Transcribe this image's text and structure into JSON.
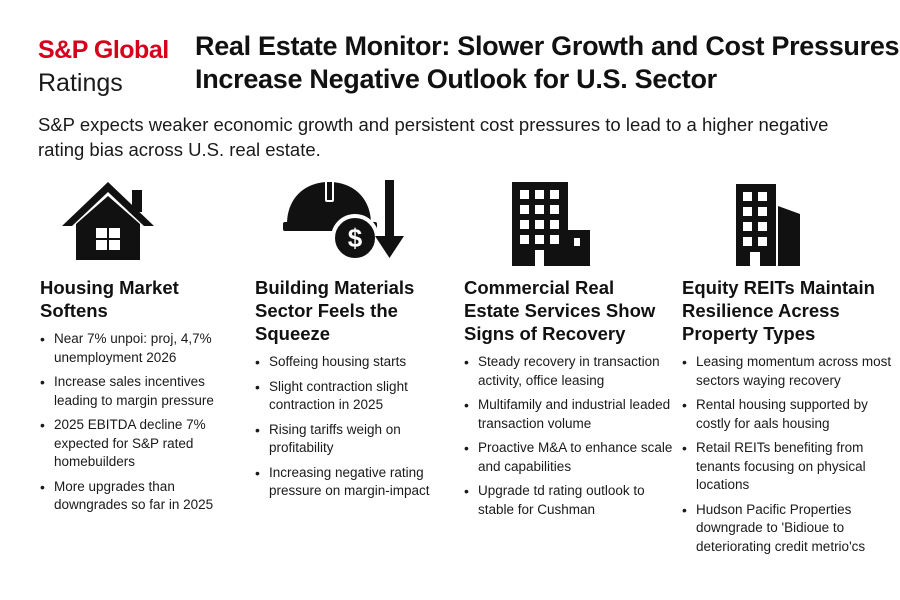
{
  "logo": {
    "brand": "S&P Global",
    "sub": "Ratings"
  },
  "title": "Real Estate Monitor: Slower Growth and Cost Pressures Increase Negative Outlook for U.S. Sector",
  "subtitle": "S&P expects weaker economic growth and persistent cost pressures to lead to a higher negative rating bias across U.S. real estate.",
  "columns": [
    {
      "icon": "house-icon",
      "title": "Housing Market Softens",
      "bullets": [
        "Near 7% unpoi: proj, 4,7% unemployment 2026",
        "Increase sales incentives leading to margin pressure",
        "2025 EBITDA decline  7% expected for S&P rated homebuilders",
        "More upgrades than downgrades so far in 2025"
      ]
    },
    {
      "icon": "hard-hat-dollar-down-icon",
      "title": "Building Materials Sector Feels the Squeeze",
      "bullets": [
        "Soffeing housing starts",
        "Slight contraction slight contraction in 2025",
        "Rising tariffs weigh on profitability",
        "Increasing negative rating pressure on margin-impact"
      ]
    },
    {
      "icon": "office-building-icon",
      "title": "Commercial Real Estate Services Show Signs of Recovery",
      "bullets": [
        "Steady recovery in transaction activity, office leasing",
        "Multifamily and industrial leaded transaction volume",
        "Proactive M&A to enhance scale and capabilities",
        "Upgrade td rating outlook to stable for Cushman"
      ]
    },
    {
      "icon": "city-buildings-icon",
      "title": "Equity REITs Maintain Resilience Acress Property Types",
      "bullets": [
        "Leasing momentum across most sectors waying recovery",
        "Rental housing supported by costly for aals housing",
        "Retail REITs benefiting from tenants focusing on physical locations",
        "Hudson Pacific Properties downgrade to 'Bidioue to deteriorating credit metrio'cs"
      ]
    }
  ],
  "colors": {
    "brand_red": "#d6001c",
    "icon_dark": "#111111",
    "text": "#1a1a1a"
  }
}
